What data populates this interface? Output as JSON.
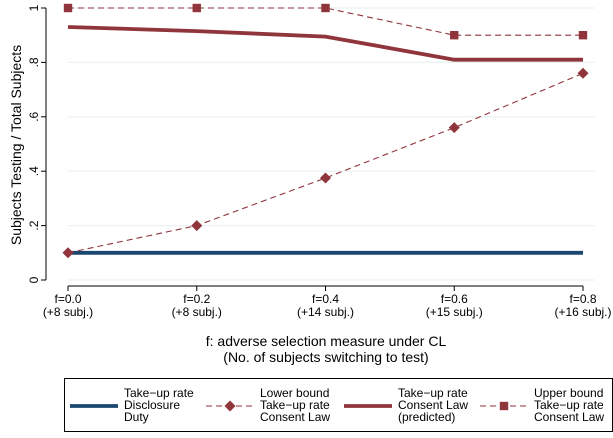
{
  "chart_data": {
    "type": "line",
    "ylabel": "Subjects Testing / Total Subjects",
    "xlabel": "f: adverse selection measure under CL",
    "xlabel_sub": "(No. of subjects switching to test)",
    "x_values": [
      0,
      0.2,
      0.4,
      0.6,
      0.8
    ],
    "x_tick_labels": [
      "f=0.0",
      "f=0.2",
      "f=0.4",
      "f=0.6",
      "f=0.8"
    ],
    "x_tick_sublabels": [
      "(+8 subj.)",
      "(+8 subj.)",
      "(+14 subj.)",
      "(+15 subj.)",
      "(+16 subj.)"
    ],
    "xlim": [
      0,
      0.8
    ],
    "ylim": [
      0,
      1
    ],
    "y_ticks": [
      0,
      0.2,
      0.4,
      0.6,
      0.8,
      1
    ],
    "y_tick_labels": [
      "0",
      ".2",
      ".4",
      ".6",
      ".8",
      "1"
    ],
    "grid": "horizontal",
    "legend_position": "bottom",
    "series": [
      {
        "legend": [
          "Take−up rate",
          "Disclosure",
          "Duty"
        ],
        "values": [
          0.1,
          0.1,
          0.1,
          0.1,
          0.1
        ],
        "color": "#1a476f",
        "style": "solid",
        "marker": "none"
      },
      {
        "legend": [
          "Lower bound",
          "Take−up rate",
          "Consent Law"
        ],
        "values": [
          0.1,
          0.2,
          0.375,
          0.56,
          0.76
        ],
        "color": "#90353b",
        "style": "dashed",
        "marker": "diamond"
      },
      {
        "legend": [
          "Take−up rate",
          "Consent Law",
          "(predicted)"
        ],
        "values": [
          0.93,
          0.915,
          0.895,
          0.81,
          0.81
        ],
        "color": "#90353b",
        "style": "solid",
        "marker": "none"
      },
      {
        "legend": [
          "Upper bound",
          "Take−up rate",
          "Consent Law"
        ],
        "values": [
          1.0,
          1.0,
          1.0,
          0.9,
          0.9
        ],
        "color": "#90353b",
        "style": "dashed",
        "marker": "square"
      }
    ]
  }
}
